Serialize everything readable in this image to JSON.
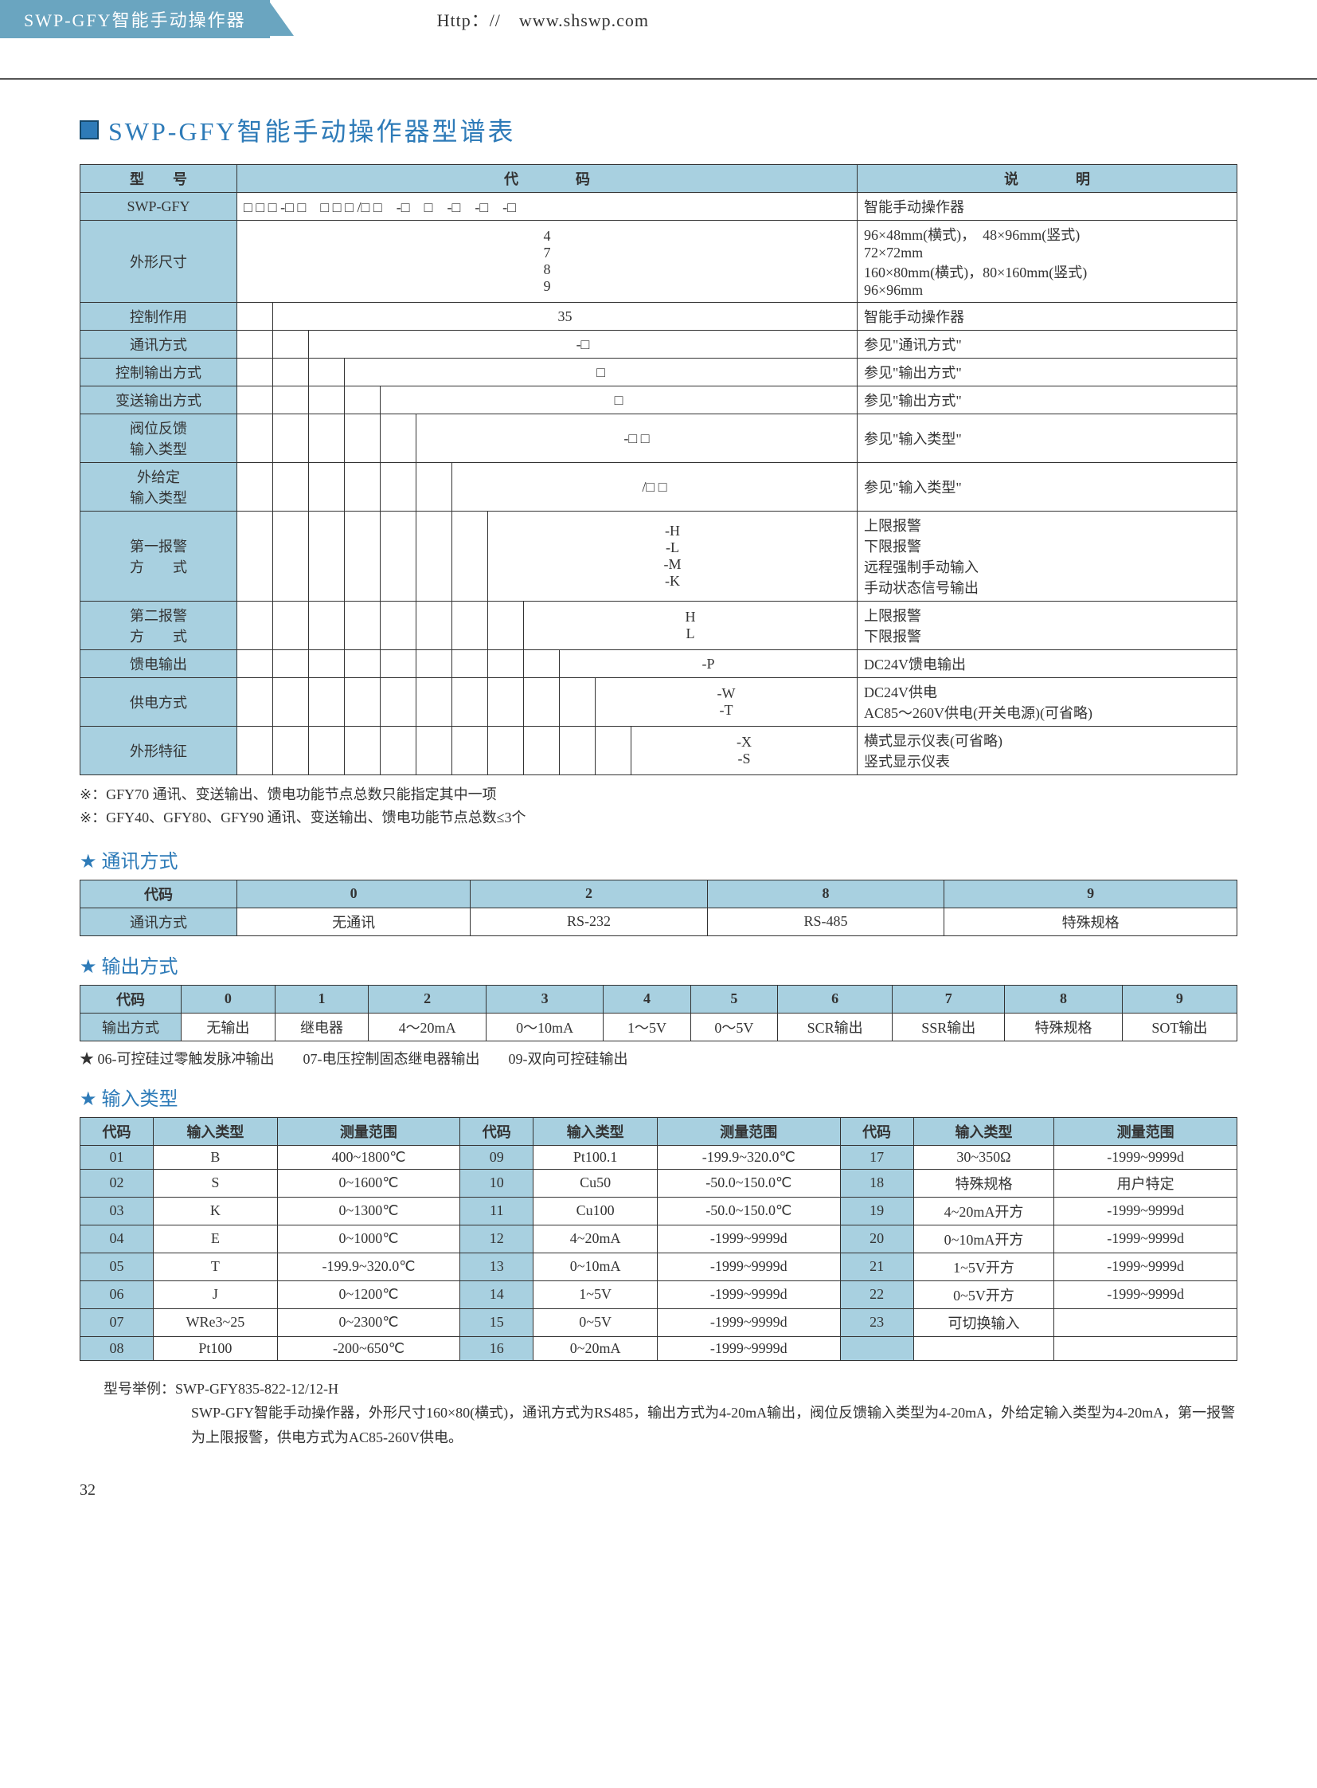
{
  "header": {
    "left": "SWP-GFY智能手动操作器",
    "url": "Http：//　www.shswp.com"
  },
  "title": "SWP-GFY智能手动操作器型谱表",
  "colors": {
    "accent": "#2e7bb8",
    "header_bg": "#6aa5c0",
    "cell_bg": "#a8d0e0",
    "border": "#333333"
  },
  "spec_table": {
    "headers": {
      "model": "型　　号",
      "code": "代　　　　码",
      "desc": "说　　　　明"
    },
    "rows": [
      {
        "label": "SWP-GFY",
        "code": "□ □ □ -□ □　□ □ □ /□ □　-□　□　-□　-□　-□",
        "desc": "智能手动操作器"
      },
      {
        "label": "外形尺寸",
        "code": "4\n7\n8\n9",
        "desc": "96×48mm(横式)，　48×96mm(竖式)\n72×72mm\n160×80mm(横式)，80×160mm(竖式)\n96×96mm"
      },
      {
        "label": "控制作用",
        "code": "35",
        "desc": "智能手动操作器"
      },
      {
        "label": "通讯方式",
        "code": "-□",
        "desc": "参见\"通讯方式\""
      },
      {
        "label": "控制输出方式",
        "code": "□",
        "desc": "参见\"输出方式\""
      },
      {
        "label": "变送输出方式",
        "code": "□",
        "desc": "参见\"输出方式\""
      },
      {
        "label": "阀位反馈\n输入类型",
        "code": "-□ □",
        "desc": "参见\"输入类型\""
      },
      {
        "label": "外给定\n输入类型",
        "code": "/□ □",
        "desc": "参见\"输入类型\""
      },
      {
        "label": "第一报警\n方　　式",
        "code": "-H\n-L\n-M\n-K",
        "desc": "上限报警\n下限报警\n远程强制手动输入\n手动状态信号输出"
      },
      {
        "label": "第二报警\n方　　式",
        "code": "H\nL",
        "desc": "上限报警\n下限报警"
      },
      {
        "label": "馈电输出",
        "code": "-P",
        "desc": "DC24V馈电输出"
      },
      {
        "label": "供电方式",
        "code": "-W\n-T",
        "desc": "DC24V供电\nAC85～260V供电(开关电源)(可省略)"
      },
      {
        "label": "外形特征",
        "code": "-X\n-S",
        "desc": "横式显示仪表(可省略)\n竖式显示仪表"
      }
    ]
  },
  "notes": [
    "※：GFY70 通讯、变送输出、馈电功能节点总数只能指定其中一项",
    "※：GFY40、GFY80、GFY90 通讯、变送输出、馈电功能节点总数≤3个"
  ],
  "comm": {
    "title": "通讯方式",
    "headers": [
      "代码",
      "0",
      "2",
      "8",
      "9"
    ],
    "row_label": "通讯方式",
    "values": [
      "无通讯",
      "RS-232",
      "RS-485",
      "特殊规格"
    ]
  },
  "output": {
    "title": "输出方式",
    "headers": [
      "代码",
      "0",
      "1",
      "2",
      "3",
      "4",
      "5",
      "6",
      "7",
      "8",
      "9"
    ],
    "row_label": "输出方式",
    "values": [
      "无输出",
      "继电器",
      "4～20mA",
      "0～10mA",
      "1～5V",
      "0～5V",
      "SCR输出",
      "SSR输出",
      "特殊规格",
      "SOT输出"
    ],
    "foot": "★ 06-可控硅过零触发脉冲输出　　07-电压控制固态继电器输出　　09-双向可控硅输出"
  },
  "input": {
    "title": "输入类型",
    "headers": [
      "代码",
      "输入类型",
      "测量范围",
      "代码",
      "输入类型",
      "测量范围",
      "代码",
      "输入类型",
      "测量范围"
    ],
    "rows": [
      [
        "01",
        "B",
        "400~1800℃",
        "09",
        "Pt100.1",
        "-199.9~320.0℃",
        "17",
        "30~350Ω",
        "-1999~9999d"
      ],
      [
        "02",
        "S",
        "0~1600℃",
        "10",
        "Cu50",
        "-50.0~150.0℃",
        "18",
        "特殊规格",
        "用户特定"
      ],
      [
        "03",
        "K",
        "0~1300℃",
        "11",
        "Cu100",
        "-50.0~150.0℃",
        "19",
        "4~20mA开方",
        "-1999~9999d"
      ],
      [
        "04",
        "E",
        "0~1000℃",
        "12",
        "4~20mA",
        "-1999~9999d",
        "20",
        "0~10mA开方",
        "-1999~9999d"
      ],
      [
        "05",
        "T",
        "-199.9~320.0℃",
        "13",
        "0~10mA",
        "-1999~9999d",
        "21",
        "1~5V开方",
        "-1999~9999d"
      ],
      [
        "06",
        "J",
        "0~1200℃",
        "14",
        "1~5V",
        "-1999~9999d",
        "22",
        "0~5V开方",
        "-1999~9999d"
      ],
      [
        "07",
        "WRe3~25",
        "0~2300℃",
        "15",
        "0~5V",
        "-1999~9999d",
        "23",
        "可切换输入",
        ""
      ],
      [
        "08",
        "Pt100",
        "-200~650℃",
        "16",
        "0~20mA",
        "-1999~9999d",
        "",
        "",
        ""
      ]
    ]
  },
  "example": {
    "label": "型号举例：SWP-GFY835-822-12/12-H",
    "text": "SWP-GFY智能手动操作器，外形尺寸160×80(横式)，通讯方式为RS485，输出方式为4-20mA输出，阀位反馈输入类型为4-20mA，外给定输入类型为4-20mA，第一报警为上限报警，供电方式为AC85-260V供电。"
  },
  "page_num": "32"
}
